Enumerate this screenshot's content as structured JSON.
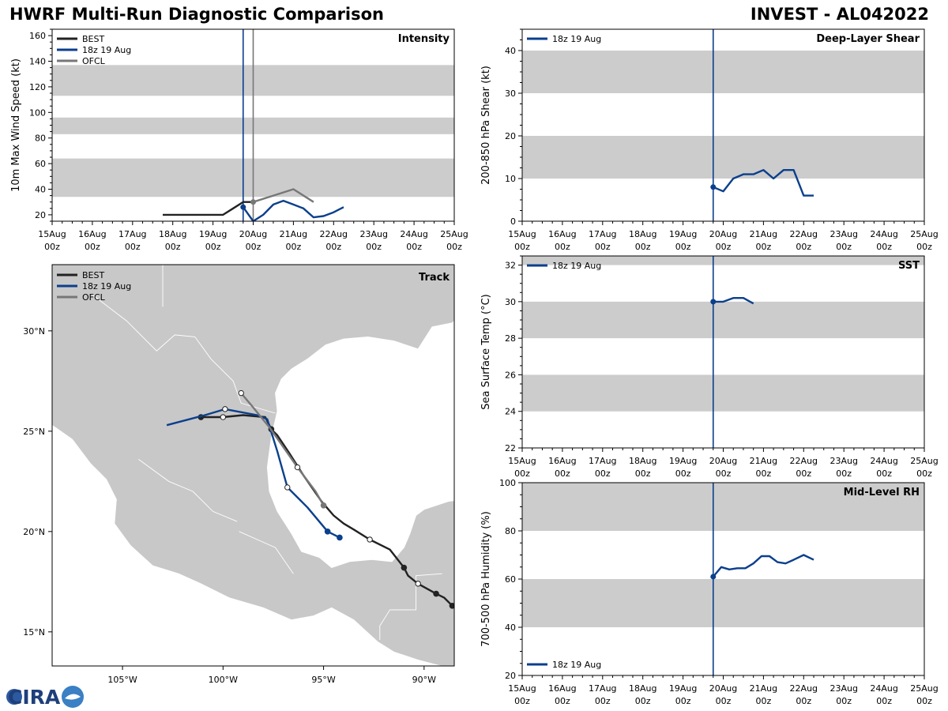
{
  "header": {
    "title_left": "HWRF Multi-Run Diagnostic Comparison",
    "title_right": "INVEST - AL042022"
  },
  "logo": {
    "text": "CIRA"
  },
  "time_axis": {
    "day_labels": [
      "15Aug",
      "16Aug",
      "17Aug",
      "18Aug",
      "19Aug",
      "20Aug",
      "21Aug",
      "22Aug",
      "23Aug",
      "24Aug",
      "25Aug"
    ],
    "hour_label": "00z"
  },
  "colors": {
    "best": "#222222",
    "hwrf": "#0b3f8c",
    "ofcl": "#777777",
    "band": "#cccccc",
    "land": "#c8c8c8"
  },
  "chart_data": [
    {
      "id": "intensity",
      "type": "line",
      "title": "Intensity",
      "ylabel": "10m Max Wind Speed (kt)",
      "xlim": [
        0,
        10
      ],
      "ylim": [
        15,
        165
      ],
      "yticks": [
        20,
        40,
        60,
        80,
        100,
        120,
        140,
        160
      ],
      "bands": [
        [
          34,
          64
        ],
        [
          83,
          96
        ],
        [
          113,
          137
        ]
      ],
      "vlines": [
        {
          "x": 4.75,
          "series": "hwrf"
        },
        {
          "x": 5.0,
          "series": "ofcl"
        }
      ],
      "legend": [
        "BEST",
        "18z 19 Aug",
        "OFCL"
      ],
      "series": [
        {
          "name": "BEST",
          "key": "best",
          "x": [
            2.75,
            3.0,
            3.25,
            3.5,
            3.75,
            4.0,
            4.25,
            4.5,
            4.75,
            5.0
          ],
          "y": [
            20,
            20,
            20,
            20,
            20,
            20,
            20,
            25,
            30,
            30
          ]
        },
        {
          "name": "18z 19 Aug",
          "key": "hwrf",
          "x": [
            4.75,
            5.0,
            5.25,
            5.5,
            5.75,
            6.0,
            6.25,
            6.5,
            6.75,
            7.0,
            7.25
          ],
          "y": [
            26,
            15,
            20,
            28,
            31,
            28,
            25,
            18,
            19,
            22,
            26
          ],
          "marker": [
            0
          ]
        },
        {
          "name": "OFCL",
          "key": "ofcl",
          "x": [
            5.0,
            5.5,
            6.0,
            6.5
          ],
          "y": [
            30,
            35,
            40,
            30
          ],
          "marker": [
            0
          ]
        }
      ]
    },
    {
      "id": "shear",
      "type": "line",
      "title": "Deep-Layer Shear",
      "ylabel": "200-850 hPa Shear (kt)",
      "xlim": [
        0,
        10
      ],
      "ylim": [
        0,
        45
      ],
      "yticks": [
        0,
        10,
        20,
        30,
        40
      ],
      "bands": [
        [
          10,
          20
        ],
        [
          30,
          40
        ]
      ],
      "vlines": [
        {
          "x": 4.75,
          "series": "hwrf"
        }
      ],
      "legend": [
        "18z 19 Aug"
      ],
      "series": [
        {
          "name": "18z 19 Aug",
          "key": "hwrf",
          "x": [
            4.75,
            5.0,
            5.25,
            5.5,
            5.75,
            6.0,
            6.25,
            6.5,
            6.75,
            7.0,
            7.25
          ],
          "y": [
            8,
            7,
            10,
            11,
            11,
            12,
            10,
            12,
            12,
            6,
            6
          ],
          "marker": [
            0
          ]
        }
      ]
    },
    {
      "id": "sst",
      "type": "line",
      "title": "SST",
      "ylabel": "Sea Surface Temp (°C)",
      "xlim": [
        0,
        10
      ],
      "ylim": [
        22,
        32.5
      ],
      "yticks": [
        22,
        24,
        26,
        28,
        30,
        32
      ],
      "bands": [
        [
          24,
          26
        ],
        [
          28,
          30
        ],
        [
          32,
          32.5
        ]
      ],
      "vlines": [
        {
          "x": 4.75,
          "series": "hwrf"
        }
      ],
      "legend": [
        "18z 19 Aug"
      ],
      "series": [
        {
          "name": "18z 19 Aug",
          "key": "hwrf",
          "x": [
            4.75,
            5.0,
            5.25,
            5.5,
            5.75
          ],
          "y": [
            30.0,
            30.0,
            30.2,
            30.2,
            29.9
          ],
          "marker": [
            0
          ]
        }
      ]
    },
    {
      "id": "rh",
      "type": "line",
      "title": "Mid-Level RH",
      "ylabel": "700-500 hPa Humidity (%)",
      "xlim": [
        0,
        10
      ],
      "ylim": [
        20,
        100
      ],
      "yticks": [
        20,
        40,
        60,
        80,
        100
      ],
      "bands": [
        [
          40,
          60
        ],
        [
          80,
          100
        ]
      ],
      "vlines": [
        {
          "x": 4.75,
          "series": "hwrf"
        }
      ],
      "legend": [
        "18z 19 Aug"
      ],
      "series": [
        {
          "name": "18z 19 Aug",
          "key": "hwrf",
          "x": [
            4.75,
            4.95,
            5.15,
            5.35,
            5.55,
            5.75,
            5.95,
            6.15,
            6.35,
            6.55,
            6.75,
            7.0,
            7.25
          ],
          "y": [
            61,
            65,
            64,
            64.5,
            64.5,
            66.5,
            69.5,
            69.5,
            67,
            66.5,
            68,
            70,
            68
          ],
          "marker": [
            0
          ]
        }
      ]
    },
    {
      "id": "track",
      "type": "scatter",
      "title": "Track",
      "xlim": [
        -108.5,
        -88.5
      ],
      "ylim": [
        13.3,
        33.3
      ],
      "xticks": [
        -105,
        -100,
        -95,
        -90
      ],
      "xtick_labels": [
        "105°W",
        "100°W",
        "95°W",
        "90°W"
      ],
      "yticks": [
        15,
        20,
        25,
        30
      ],
      "ytick_labels": [
        "15°N",
        "20°N",
        "25°N",
        "30°N"
      ],
      "legend": [
        "BEST",
        "18z 19 Aug",
        "OFCL"
      ],
      "series": [
        {
          "name": "BEST",
          "key": "best",
          "lon": [
            -88.6,
            -89.0,
            -89.4,
            -90.3,
            -90.8,
            -91.0,
            -91.7,
            -92.7,
            -93.5,
            -94.0,
            -94.5,
            -95.1,
            -96.0,
            -96.7,
            -97.3,
            -97.6,
            -97.9,
            -99.0,
            -100.0,
            -101.1
          ],
          "lat": [
            16.3,
            16.7,
            16.9,
            17.4,
            17.8,
            18.2,
            19.1,
            19.6,
            20.1,
            20.4,
            20.8,
            21.5,
            22.8,
            23.9,
            24.8,
            25.1,
            25.7,
            25.8,
            25.7,
            25.7
          ],
          "filled": [
            0,
            2,
            5,
            15,
            19
          ],
          "hollow": [
            3,
            7,
            18
          ]
        },
        {
          "name": "18z 19 Aug",
          "key": "hwrf",
          "lon": [
            -94.2,
            -94.8,
            -95.8,
            -96.8,
            -97.3,
            -97.8,
            -98.3,
            -99.9,
            -100.9,
            -102.8
          ],
          "lat": [
            19.7,
            20.0,
            21.2,
            22.2,
            24.0,
            25.6,
            25.8,
            26.1,
            25.8,
            25.3
          ],
          "filled": [
            0,
            1
          ],
          "hollow": [
            3,
            7
          ]
        },
        {
          "name": "OFCL",
          "key": "ofcl",
          "lon": [
            -95.0,
            -95.4,
            -96.3,
            -97.0,
            -97.7,
            -98.6,
            -99.1
          ],
          "lat": [
            21.3,
            22.0,
            23.2,
            24.2,
            25.2,
            26.3,
            26.9
          ],
          "filled": [
            0
          ],
          "hollow": [
            2,
            6
          ]
        }
      ]
    }
  ]
}
